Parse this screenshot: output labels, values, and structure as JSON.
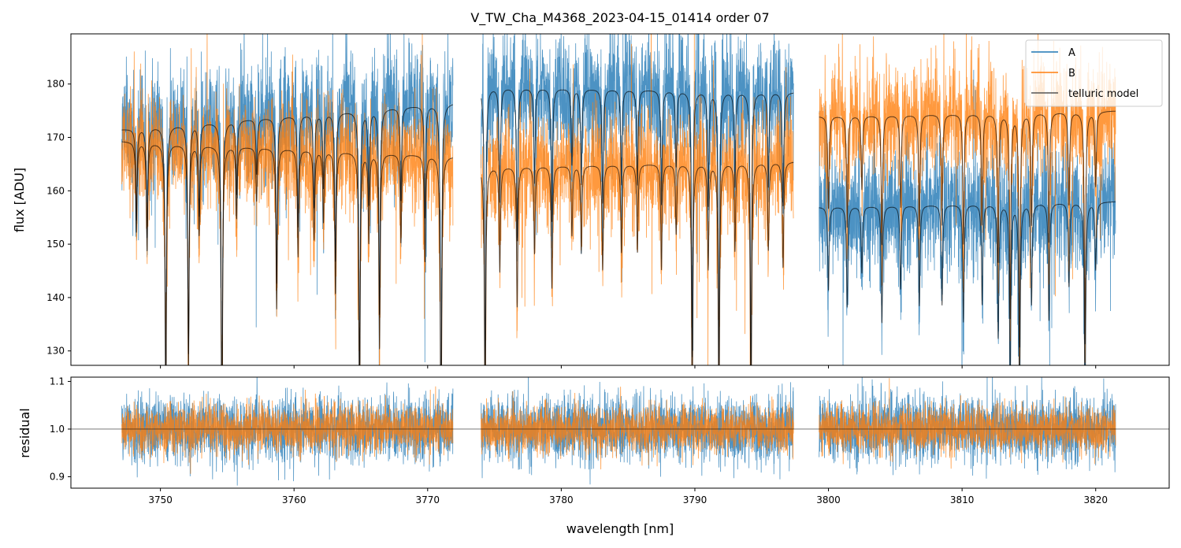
{
  "chart_data": {
    "type": "line",
    "title": "V_TW_Cha_M4368_2023-04-15_01414  order 07",
    "xlabel": "wavelength [nm]",
    "xlim": [
      3743.3,
      3825.5
    ],
    "x_ticks": [
      3750,
      3760,
      3770,
      3780,
      3790,
      3800,
      3810,
      3820
    ],
    "panels": [
      {
        "name": "flux",
        "ylabel": "flux [ADU]",
        "ylim": [
          127.3,
          189.4
        ],
        "y_ticks": [
          130,
          140,
          150,
          160,
          170,
          180
        ]
      },
      {
        "name": "residual",
        "ylabel": "residual",
        "ylim": [
          0.876,
          1.109
        ],
        "y_ticks": [
          0.9,
          1.0,
          1.1
        ],
        "reference_line": 1.0
      }
    ],
    "legend": {
      "placement": "top-right",
      "entries": [
        "A",
        "B",
        "telluric model"
      ]
    },
    "colors": {
      "A": "#1f77b4",
      "B": "#ff7f0e",
      "telluric model": "#000000"
    },
    "segments": [
      {
        "range": [
          3747.1,
          3771.9
        ],
        "A_continuum": [
          171.5,
          176.5
        ],
        "B_continuum": [
          169.3,
          166.5
        ]
      },
      {
        "range": [
          3774.0,
          3797.4
        ],
        "A_continuum": [
          179.5,
          178.5
        ],
        "B_continuum": [
          164.5,
          165.5
        ]
      },
      {
        "range": [
          3799.3,
          3821.5
        ],
        "A_continuum": [
          157.0,
          158.0
        ],
        "B_continuum": [
          174.0,
          175.0
        ]
      }
    ],
    "noise_sigma": {
      "A": 5.5,
      "B": 5.0,
      "residual_A": 0.035,
      "residual_B": 0.025
    },
    "telluric_lines": [
      [
        3748.2,
        0.1
      ],
      [
        3749.0,
        0.12
      ],
      [
        3750.4,
        0.3
      ],
      [
        3752.1,
        0.25
      ],
      [
        3752.9,
        0.1
      ],
      [
        3754.6,
        0.35
      ],
      [
        3755.7,
        0.08
      ],
      [
        3757.2,
        0.06
      ],
      [
        3758.7,
        0.18
      ],
      [
        3760.3,
        0.12
      ],
      [
        3761.5,
        0.1
      ],
      [
        3762.2,
        0.08
      ],
      [
        3763.1,
        0.16
      ],
      [
        3764.9,
        0.3
      ],
      [
        3765.6,
        0.1
      ],
      [
        3766.4,
        0.22
      ],
      [
        3768.0,
        0.1
      ],
      [
        3769.8,
        0.12
      ],
      [
        3771.0,
        0.35
      ],
      [
        3774.3,
        0.3
      ],
      [
        3775.4,
        0.12
      ],
      [
        3776.7,
        0.16
      ],
      [
        3778.0,
        0.1
      ],
      [
        3779.3,
        0.14
      ],
      [
        3780.8,
        0.08
      ],
      [
        3781.5,
        0.1
      ],
      [
        3783.1,
        0.12
      ],
      [
        3784.5,
        0.1
      ],
      [
        3785.7,
        0.1
      ],
      [
        3787.5,
        0.12
      ],
      [
        3788.6,
        0.08
      ],
      [
        3789.8,
        0.28
      ],
      [
        3791.0,
        0.12
      ],
      [
        3791.8,
        0.3
      ],
      [
        3793.0,
        0.1
      ],
      [
        3794.2,
        0.3
      ],
      [
        3795.5,
        0.1
      ],
      [
        3796.6,
        0.12
      ],
      [
        3800.0,
        0.1
      ],
      [
        3801.4,
        0.12
      ],
      [
        3802.5,
        0.08
      ],
      [
        3804.0,
        0.14
      ],
      [
        3805.4,
        0.1
      ],
      [
        3806.8,
        0.12
      ],
      [
        3808.5,
        0.12
      ],
      [
        3810.1,
        0.14
      ],
      [
        3811.5,
        0.12
      ],
      [
        3812.7,
        0.16
      ],
      [
        3813.6,
        0.22
      ],
      [
        3814.3,
        0.25
      ],
      [
        3815.2,
        0.12
      ],
      [
        3816.5,
        0.14
      ],
      [
        3818.0,
        0.1
      ],
      [
        3819.2,
        0.25
      ],
      [
        3820.0,
        0.08
      ]
    ]
  }
}
